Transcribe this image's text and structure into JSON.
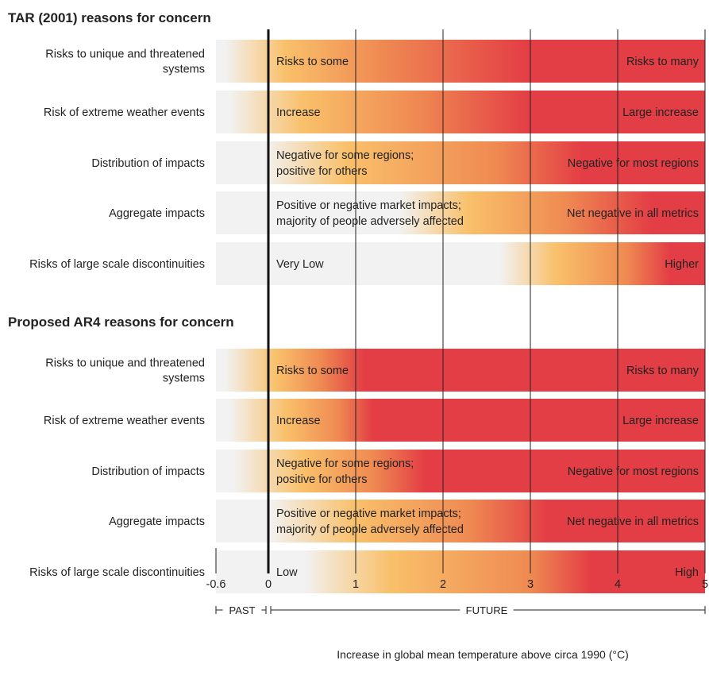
{
  "chart_data": {
    "type": "heatmap",
    "x_axis": {
      "label": "Increase in global mean temperature above circa 1990 (°C)",
      "range": [
        -0.6,
        5
      ],
      "ticks": [
        "-0.6",
        "0",
        "1",
        "2",
        "3",
        "4",
        "5"
      ],
      "tick_values": [
        -0.6,
        0,
        1,
        2,
        3,
        4,
        5
      ],
      "periods": [
        {
          "label": "PAST",
          "range": [
            -0.6,
            0
          ]
        },
        {
          "label": "FUTURE",
          "range": [
            0,
            5
          ]
        }
      ]
    },
    "colors": {
      "background": "#f0f1f3",
      "light": "#f2f2f2",
      "yellow": "#f9c06a",
      "orange": "#ef8a52",
      "red": "#e33d45"
    },
    "sections": [
      {
        "title": "TAR (2001) reasons for concern",
        "rows": [
          {
            "label": [
              "Risks to unique and threatened",
              "systems"
            ],
            "low_text": [
              "Risks to some"
            ],
            "high_text": [
              "Risks to many"
            ],
            "gradient": [
              {
                "x": -0.6,
                "color": "light"
              },
              {
                "x": -0.5,
                "color": "light"
              },
              {
                "x": 0.2,
                "color": "yellow"
              },
              {
                "x": 1.3,
                "color": "orange"
              },
              {
                "x": 3.0,
                "color": "red"
              },
              {
                "x": 5.0,
                "color": "red"
              }
            ]
          },
          {
            "label": [
              "Risk of extreme weather events"
            ],
            "low_text": [
              "Increase"
            ],
            "high_text": [
              "Large increase"
            ],
            "gradient": [
              {
                "x": -0.6,
                "color": "light"
              },
              {
                "x": -0.45,
                "color": "light"
              },
              {
                "x": 0.4,
                "color": "yellow"
              },
              {
                "x": 1.7,
                "color": "orange"
              },
              {
                "x": 3.0,
                "color": "red"
              },
              {
                "x": 5.0,
                "color": "red"
              }
            ]
          },
          {
            "label": [
              "Distribution of impacts"
            ],
            "low_text": [
              "Negative for some regions;",
              "positive for others"
            ],
            "high_text": [
              "Negative for most regions"
            ],
            "gradient": [
              {
                "x": -0.6,
                "color": "light"
              },
              {
                "x": -0.05,
                "color": "light"
              },
              {
                "x": 0.9,
                "color": "yellow"
              },
              {
                "x": 2.6,
                "color": "orange"
              },
              {
                "x": 3.6,
                "color": "red"
              },
              {
                "x": 5.0,
                "color": "red"
              }
            ]
          },
          {
            "label": [
              "Aggregate impacts"
            ],
            "low_text": [
              "Positive or negative market impacts;",
              "majority of people adversely affected"
            ],
            "high_text": [
              "Net negative in all metrics"
            ],
            "gradient": [
              {
                "x": -0.6,
                "color": "light"
              },
              {
                "x": 1.5,
                "color": "light"
              },
              {
                "x": 2.3,
                "color": "yellow"
              },
              {
                "x": 3.4,
                "color": "orange"
              },
              {
                "x": 4.4,
                "color": "red"
              },
              {
                "x": 5.0,
                "color": "red"
              }
            ]
          },
          {
            "label": [
              "Risks of large scale discontinuities"
            ],
            "low_text": [
              "Very Low"
            ],
            "high_text": [
              "Higher"
            ],
            "gradient": [
              {
                "x": -0.6,
                "color": "light"
              },
              {
                "x": 2.65,
                "color": "light"
              },
              {
                "x": 3.3,
                "color": "yellow"
              },
              {
                "x": 4.1,
                "color": "orange"
              },
              {
                "x": 4.6,
                "color": "red"
              },
              {
                "x": 5.0,
                "color": "red"
              }
            ]
          }
        ]
      },
      {
        "title": "Proposed AR4 reasons for concern",
        "rows": [
          {
            "label": [
              "Risks to unique and threatened",
              "systems"
            ],
            "low_text": [
              "Risks to some"
            ],
            "high_text": [
              "Risks to many"
            ],
            "gradient": [
              {
                "x": -0.6,
                "color": "light"
              },
              {
                "x": -0.5,
                "color": "light"
              },
              {
                "x": 0.1,
                "color": "yellow"
              },
              {
                "x": 0.6,
                "color": "orange"
              },
              {
                "x": 1.1,
                "color": "red"
              },
              {
                "x": 5.0,
                "color": "red"
              }
            ]
          },
          {
            "label": [
              "Risk of extreme weather events"
            ],
            "low_text": [
              "Increase"
            ],
            "high_text": [
              "Large increase"
            ],
            "gradient": [
              {
                "x": -0.6,
                "color": "light"
              },
              {
                "x": -0.45,
                "color": "light"
              },
              {
                "x": 0.2,
                "color": "yellow"
              },
              {
                "x": 0.8,
                "color": "orange"
              },
              {
                "x": 1.2,
                "color": "red"
              },
              {
                "x": 5.0,
                "color": "red"
              }
            ]
          },
          {
            "label": [
              "Distribution of impacts"
            ],
            "low_text": [
              "Negative for some regions;",
              "positive for others"
            ],
            "high_text": [
              "Negative for most regions"
            ],
            "gradient": [
              {
                "x": -0.6,
                "color": "light"
              },
              {
                "x": -0.4,
                "color": "light"
              },
              {
                "x": 0.4,
                "color": "yellow"
              },
              {
                "x": 1.2,
                "color": "orange"
              },
              {
                "x": 1.8,
                "color": "red"
              },
              {
                "x": 5.0,
                "color": "red"
              }
            ]
          },
          {
            "label": [
              "Aggregate impacts"
            ],
            "low_text": [
              "Positive or negative market impacts;",
              "majority of people adversely affected"
            ],
            "high_text": [
              "Net negative in all metrics"
            ],
            "gradient": [
              {
                "x": -0.6,
                "color": "light"
              },
              {
                "x": 0.0,
                "color": "light"
              },
              {
                "x": 1.0,
                "color": "yellow"
              },
              {
                "x": 2.3,
                "color": "orange"
              },
              {
                "x": 3.2,
                "color": "red"
              },
              {
                "x": 5.0,
                "color": "red"
              }
            ]
          },
          {
            "label": [
              "Risks of large scale discontinuities"
            ],
            "low_text": [
              "Low"
            ],
            "high_text": [
              "High"
            ],
            "gradient": [
              {
                "x": -0.6,
                "color": "light"
              },
              {
                "x": 0.4,
                "color": "light"
              },
              {
                "x": 1.4,
                "color": "yellow"
              },
              {
                "x": 3.0,
                "color": "orange"
              },
              {
                "x": 3.7,
                "color": "red"
              },
              {
                "x": 5.0,
                "color": "red"
              }
            ]
          }
        ]
      }
    ]
  }
}
